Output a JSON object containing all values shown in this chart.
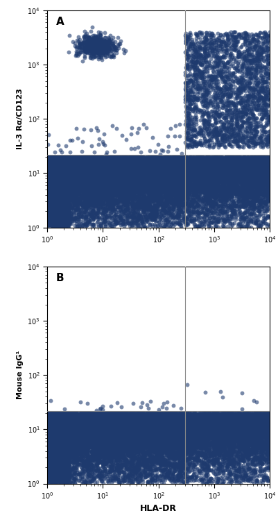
{
  "panel_A": {
    "label": "A",
    "ylabel": "IL-3 Rα/CD123",
    "vline": 300,
    "hline": 22,
    "dot_color": "#1e3a6e",
    "clusters": [
      {
        "type": "dense_left_col",
        "x_range": [
          1,
          2.5
        ],
        "y_range": [
          1,
          20
        ],
        "n": 8000
      },
      {
        "type": "scatter_bottom_mid",
        "x_range": [
          2.5,
          300
        ],
        "y_range": [
          1,
          20
        ],
        "n": 12000
      },
      {
        "type": "scatter_bottom_right",
        "x_range": [
          300,
          10000
        ],
        "y_range": [
          1,
          20
        ],
        "n": 6000
      },
      {
        "type": "cluster_top_left",
        "x_center": 8,
        "y_center": 2200,
        "x_std": 0.38,
        "y_std": 0.22,
        "n": 600
      },
      {
        "type": "scatter_sparse_left_upper",
        "x_range": [
          1,
          280
        ],
        "y_range": [
          22,
          80
        ],
        "n": 60
      },
      {
        "type": "scatter_right_upper",
        "x_range": [
          300,
          10000
        ],
        "y_range": [
          30,
          4000
        ],
        "n": 2500
      }
    ]
  },
  "panel_B": {
    "label": "B",
    "ylabel": "Mouse IgG¹",
    "vline": 300,
    "hline": 22,
    "dot_color": "#1e3a6e",
    "clusters": [
      {
        "type": "dense_left_col",
        "x_range": [
          1,
          2.5
        ],
        "y_range": [
          1,
          20
        ],
        "n": 8000
      },
      {
        "type": "scatter_bottom_mid",
        "x_range": [
          2.5,
          300
        ],
        "y_range": [
          1,
          20
        ],
        "n": 12000
      },
      {
        "type": "scatter_bottom_right",
        "x_range": [
          300,
          10000
        ],
        "y_range": [
          1,
          20
        ],
        "n": 6000
      },
      {
        "type": "scatter_sparse_left_upper",
        "x_range": [
          1,
          280
        ],
        "y_range": [
          22,
          35
        ],
        "n": 25
      },
      {
        "type": "scatter_sparse_right_upper",
        "x_range": [
          300,
          10000
        ],
        "y_range": [
          22,
          90
        ],
        "n": 8
      }
    ]
  },
  "xlabel": "HLA-DR",
  "xlim": [
    1,
    10000
  ],
  "ylim": [
    1,
    10000
  ],
  "bg_color": "#ffffff",
  "dot_size": 18,
  "dot_alpha": 0.6
}
